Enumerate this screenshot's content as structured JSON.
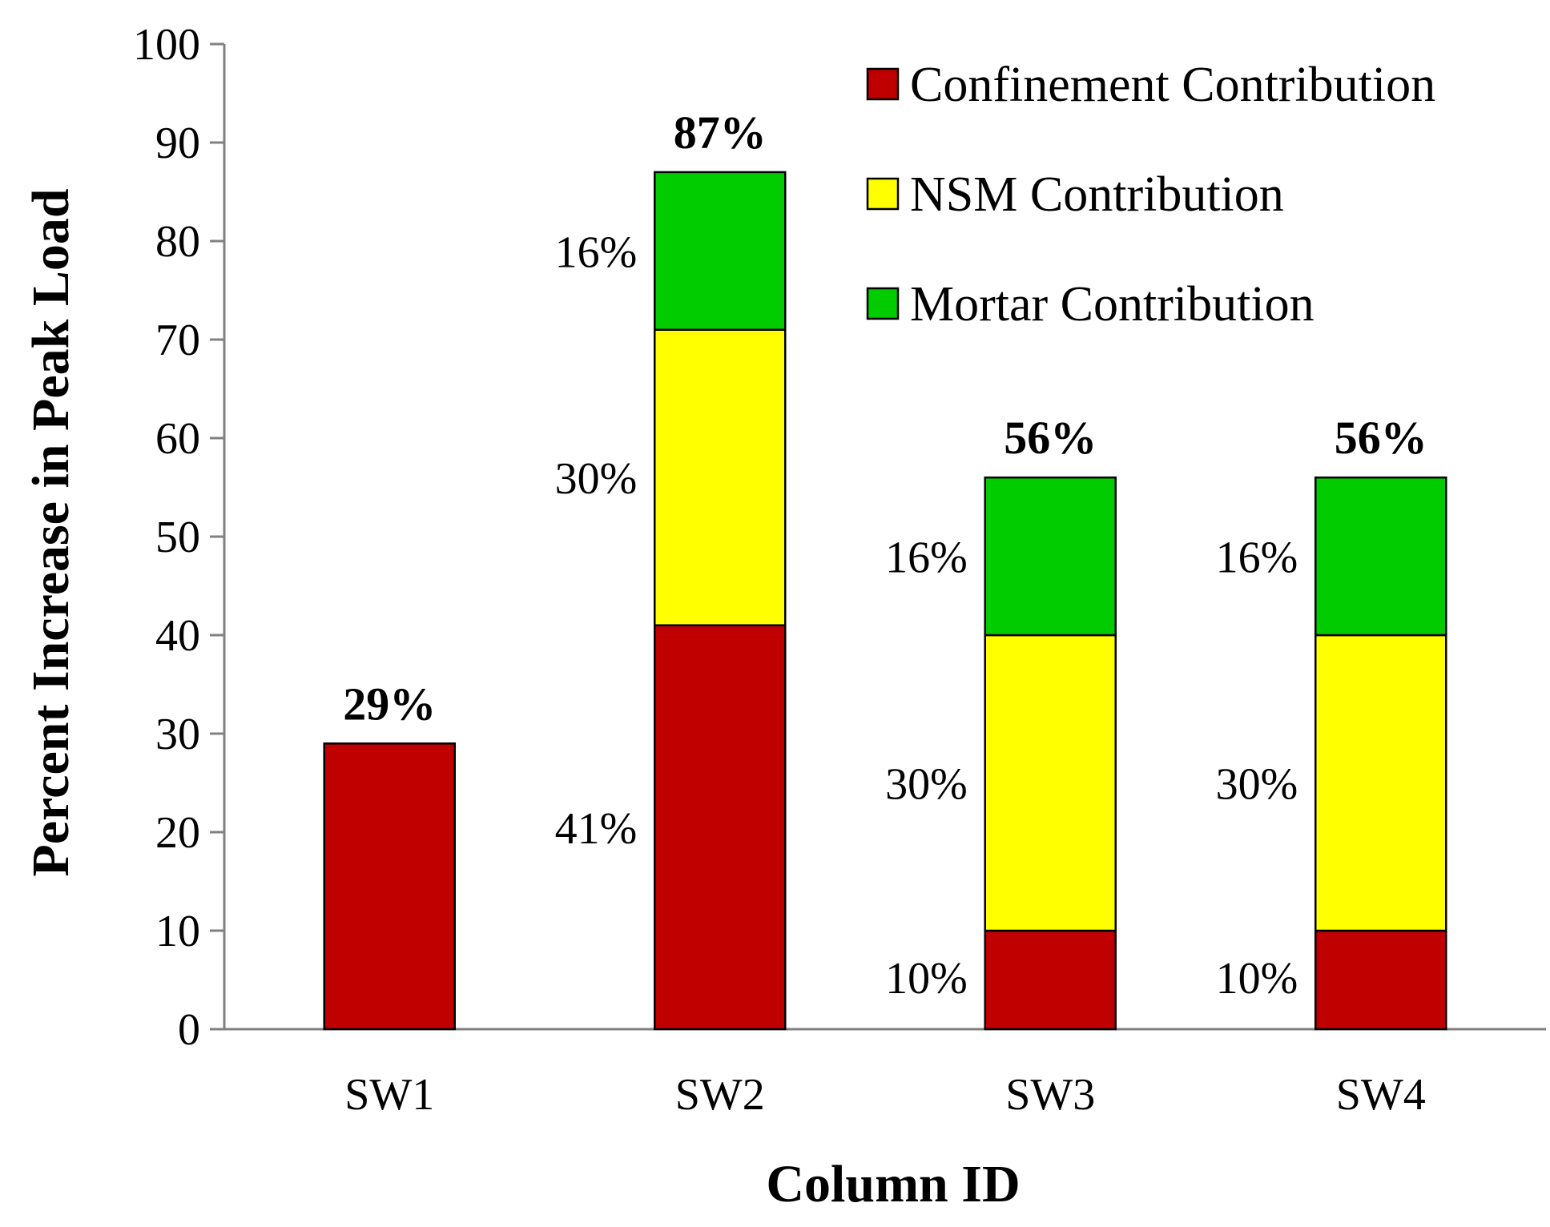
{
  "chart_data": {
    "type": "bar",
    "stacked": true,
    "title": "",
    "xlabel": "Column ID",
    "ylabel": "Percent Increase in Peak Load",
    "ylim": [
      0,
      100
    ],
    "ytick_step": 10,
    "yticks": [
      "0",
      "10",
      "20",
      "30",
      "40",
      "50",
      "60",
      "70",
      "80",
      "90",
      "100"
    ],
    "categories": [
      "SW1",
      "SW2",
      "SW3",
      "SW4"
    ],
    "series": [
      {
        "name": "Confinement Contribution",
        "color": "#c00000",
        "values": [
          29,
          41,
          10,
          10
        ]
      },
      {
        "name": "NSM Contribution",
        "color": "#ffff00",
        "values": [
          0,
          30,
          30,
          30
        ]
      },
      {
        "name": "Mortar Contribution",
        "color": "#00cc00",
        "values": [
          0,
          16,
          16,
          16
        ]
      }
    ],
    "segment_labels": [
      [
        null,
        null,
        null
      ],
      [
        "41%",
        "30%",
        "16%"
      ],
      [
        "10%",
        "30%",
        "16%"
      ],
      [
        "10%",
        "30%",
        "16%"
      ]
    ],
    "totals": [
      29,
      87,
      56,
      56
    ],
    "total_labels": [
      "29%",
      "87%",
      "56%",
      "56%"
    ],
    "legend_position": "top-right"
  }
}
